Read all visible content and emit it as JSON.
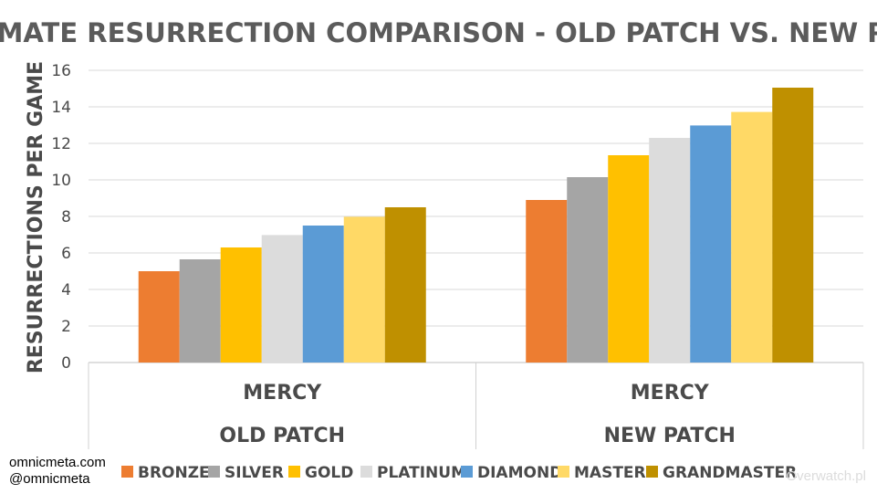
{
  "chart_data": {
    "type": "bar",
    "title": "TEAMMATE RESURRECTION COMPARISON - OLD PATCH VS. NEW PATCH",
    "ylabel": "RESURRECTIONS  PER GAME",
    "ylim": [
      0,
      16
    ],
    "yticks": [
      0,
      2,
      4,
      6,
      8,
      10,
      12,
      14,
      16
    ],
    "groups": [
      {
        "hero": "MERCY",
        "patch": "OLD PATCH"
      },
      {
        "hero": "MERCY",
        "patch": "NEW PATCH"
      }
    ],
    "series": [
      {
        "name": "BRONZE",
        "color": "#ED7D31",
        "values": [
          5.0,
          8.9
        ]
      },
      {
        "name": "SILVER",
        "color": "#A5A5A5",
        "values": [
          5.65,
          10.15
        ]
      },
      {
        "name": "GOLD",
        "color": "#FFC000",
        "values": [
          6.3,
          11.35
        ]
      },
      {
        "name": "PLATINUM",
        "color": "#DCDCDC",
        "values": [
          6.98,
          12.3
        ]
      },
      {
        "name": "DIAMOND",
        "color": "#5B9BD5",
        "values": [
          7.5,
          12.98
        ]
      },
      {
        "name": "MASTER",
        "color": "#FFD966",
        "values": [
          7.98,
          13.72
        ]
      },
      {
        "name": "GRANDMASTER",
        "color": "#BF9000",
        "values": [
          8.5,
          15.05
        ]
      }
    ]
  },
  "credits": {
    "line1": "omnicmeta.com",
    "line2": "@omnicmeta"
  },
  "watermark": "Overwatch.pl"
}
